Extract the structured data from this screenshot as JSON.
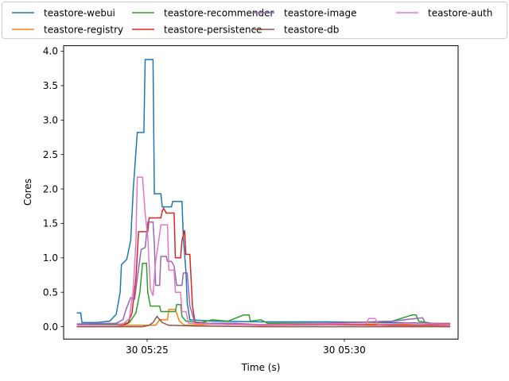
{
  "chart_data": {
    "type": "line",
    "xlabel": "Time (s)",
    "ylabel": "Cores",
    "xlim": [
      0,
      600
    ],
    "ylim": [
      -0.18,
      4.08
    ],
    "x_tick_labels": [
      {
        "x": 127,
        "label": "30 05:25"
      },
      {
        "x": 427,
        "label": "30 05:30"
      }
    ],
    "y_ticks": [
      0.0,
      0.5,
      1.0,
      1.5,
      2.0,
      2.5,
      3.0,
      3.5,
      4.0
    ],
    "y_tick_labels": [
      "0.0",
      "0.5",
      "1.0",
      "1.5",
      "2.0",
      "2.5",
      "3.0",
      "3.5",
      "4.0"
    ],
    "grid": false,
    "legend_position": "top",
    "series": [
      {
        "name": "teastore-webui",
        "color": "#1f77b4",
        "points": [
          [
            20,
            0.2
          ],
          [
            26,
            0.2
          ],
          [
            28,
            0.06
          ],
          [
            50,
            0.06
          ],
          [
            70,
            0.08
          ],
          [
            80,
            0.18
          ],
          [
            86,
            0.5
          ],
          [
            88,
            0.9
          ],
          [
            96,
            0.98
          ],
          [
            102,
            1.25
          ],
          [
            106,
            2.0
          ],
          [
            112,
            2.82
          ],
          [
            122,
            2.82
          ],
          [
            124,
            3.88
          ],
          [
            136,
            3.88
          ],
          [
            138,
            1.93
          ],
          [
            148,
            1.93
          ],
          [
            150,
            1.74
          ],
          [
            164,
            1.74
          ],
          [
            166,
            1.82
          ],
          [
            180,
            1.82
          ],
          [
            182,
            1.3
          ],
          [
            186,
            0.8
          ],
          [
            188,
            0.35
          ],
          [
            192,
            0.1
          ],
          [
            230,
            0.08
          ],
          [
            300,
            0.07
          ],
          [
            400,
            0.07
          ],
          [
            500,
            0.06
          ],
          [
            560,
            0.05
          ],
          [
            588,
            0.05
          ]
        ]
      },
      {
        "name": "teastore-registry",
        "color": "#ff7f0e",
        "points": [
          [
            20,
            0.02
          ],
          [
            140,
            0.02
          ],
          [
            146,
            0.1
          ],
          [
            158,
            0.1
          ],
          [
            160,
            0.25
          ],
          [
            170,
            0.25
          ],
          [
            176,
            0.08
          ],
          [
            184,
            0.02
          ],
          [
            240,
            0.04
          ],
          [
            300,
            0.03
          ],
          [
            400,
            0.04
          ],
          [
            520,
            0.04
          ],
          [
            560,
            0.05
          ],
          [
            588,
            0.05
          ]
        ]
      },
      {
        "name": "teastore-recommender",
        "color": "#2ca02c",
        "points": [
          [
            20,
            0.03
          ],
          [
            88,
            0.04
          ],
          [
            100,
            0.06
          ],
          [
            110,
            0.2
          ],
          [
            116,
            0.5
          ],
          [
            120,
            0.92
          ],
          [
            126,
            0.92
          ],
          [
            128,
            0.5
          ],
          [
            132,
            0.3
          ],
          [
            146,
            0.3
          ],
          [
            148,
            0.22
          ],
          [
            170,
            0.22
          ],
          [
            172,
            0.32
          ],
          [
            178,
            0.32
          ],
          [
            180,
            0.15
          ],
          [
            186,
            0.08
          ],
          [
            210,
            0.06
          ],
          [
            226,
            0.1
          ],
          [
            250,
            0.08
          ],
          [
            274,
            0.17
          ],
          [
            282,
            0.17
          ],
          [
            284,
            0.08
          ],
          [
            300,
            0.1
          ],
          [
            310,
            0.05
          ],
          [
            400,
            0.05
          ],
          [
            500,
            0.08
          ],
          [
            530,
            0.17
          ],
          [
            536,
            0.17
          ],
          [
            540,
            0.08
          ],
          [
            560,
            0.05
          ],
          [
            588,
            0.04
          ]
        ]
      },
      {
        "name": "teastore-persistence",
        "color": "#d62728",
        "points": [
          [
            20,
            0.02
          ],
          [
            90,
            0.02
          ],
          [
            98,
            0.05
          ],
          [
            104,
            0.2
          ],
          [
            110,
            0.7
          ],
          [
            114,
            1.38
          ],
          [
            128,
            1.38
          ],
          [
            130,
            1.58
          ],
          [
            148,
            1.58
          ],
          [
            150,
            1.68
          ],
          [
            152,
            1.72
          ],
          [
            156,
            1.65
          ],
          [
            168,
            1.65
          ],
          [
            170,
            1.0
          ],
          [
            178,
            1.0
          ],
          [
            180,
            1.25
          ],
          [
            184,
            1.4
          ],
          [
            186,
            1.05
          ],
          [
            192,
            1.05
          ],
          [
            196,
            0.3
          ],
          [
            200,
            0.06
          ],
          [
            240,
            0.04
          ],
          [
            300,
            0.02
          ],
          [
            400,
            0.03
          ],
          [
            500,
            0.02
          ],
          [
            588,
            0.02
          ]
        ]
      },
      {
        "name": "teastore-image",
        "color": "#9467bd",
        "points": [
          [
            20,
            0.04
          ],
          [
            80,
            0.05
          ],
          [
            90,
            0.1
          ],
          [
            96,
            0.28
          ],
          [
            102,
            0.42
          ],
          [
            108,
            0.4
          ],
          [
            112,
            0.7
          ],
          [
            118,
            1.12
          ],
          [
            124,
            1.15
          ],
          [
            128,
            1.52
          ],
          [
            136,
            1.52
          ],
          [
            138,
            1.2
          ],
          [
            140,
            0.6
          ],
          [
            146,
            0.6
          ],
          [
            148,
            1.02
          ],
          [
            156,
            1.02
          ],
          [
            158,
            0.95
          ],
          [
            164,
            0.95
          ],
          [
            168,
            0.88
          ],
          [
            172,
            0.6
          ],
          [
            180,
            0.6
          ],
          [
            182,
            0.78
          ],
          [
            188,
            0.78
          ],
          [
            192,
            0.3
          ],
          [
            200,
            0.05
          ],
          [
            260,
            0.05
          ],
          [
            300,
            0.03
          ],
          [
            400,
            0.05
          ],
          [
            500,
            0.08
          ],
          [
            546,
            0.13
          ],
          [
            550,
            0.05
          ],
          [
            588,
            0.04
          ]
        ]
      },
      {
        "name": "teastore-db",
        "color": "#8c564b",
        "points": [
          [
            20,
            0.0
          ],
          [
            120,
            0.0
          ],
          [
            130,
            0.02
          ],
          [
            136,
            0.06
          ],
          [
            142,
            0.15
          ],
          [
            150,
            0.06
          ],
          [
            160,
            0.02
          ],
          [
            200,
            0.01
          ],
          [
            300,
            0.0
          ],
          [
            400,
            0.0
          ],
          [
            500,
            0.0
          ],
          [
            588,
            0.0
          ]
        ]
      },
      {
        "name": "teastore-auth",
        "color": "#e377c2",
        "points": [
          [
            20,
            0.02
          ],
          [
            80,
            0.02
          ],
          [
            92,
            0.05
          ],
          [
            100,
            0.12
          ],
          [
            106,
            0.55
          ],
          [
            110,
            1.24
          ],
          [
            112,
            2.17
          ],
          [
            120,
            2.17
          ],
          [
            124,
            1.65
          ],
          [
            128,
            1.3
          ],
          [
            132,
            0.55
          ],
          [
            136,
            0.45
          ],
          [
            140,
            0.95
          ],
          [
            144,
            1.2
          ],
          [
            148,
            1.48
          ],
          [
            158,
            1.48
          ],
          [
            160,
            0.82
          ],
          [
            168,
            0.82
          ],
          [
            170,
            0.5
          ],
          [
            178,
            0.5
          ],
          [
            180,
            0.22
          ],
          [
            186,
            0.22
          ],
          [
            190,
            0.05
          ],
          [
            250,
            0.03
          ],
          [
            300,
            0.03
          ],
          [
            400,
            0.04
          ],
          [
            460,
            0.04
          ],
          [
            464,
            0.12
          ],
          [
            474,
            0.12
          ],
          [
            478,
            0.03
          ],
          [
            520,
            0.05
          ],
          [
            588,
            0.03
          ]
        ]
      }
    ]
  }
}
